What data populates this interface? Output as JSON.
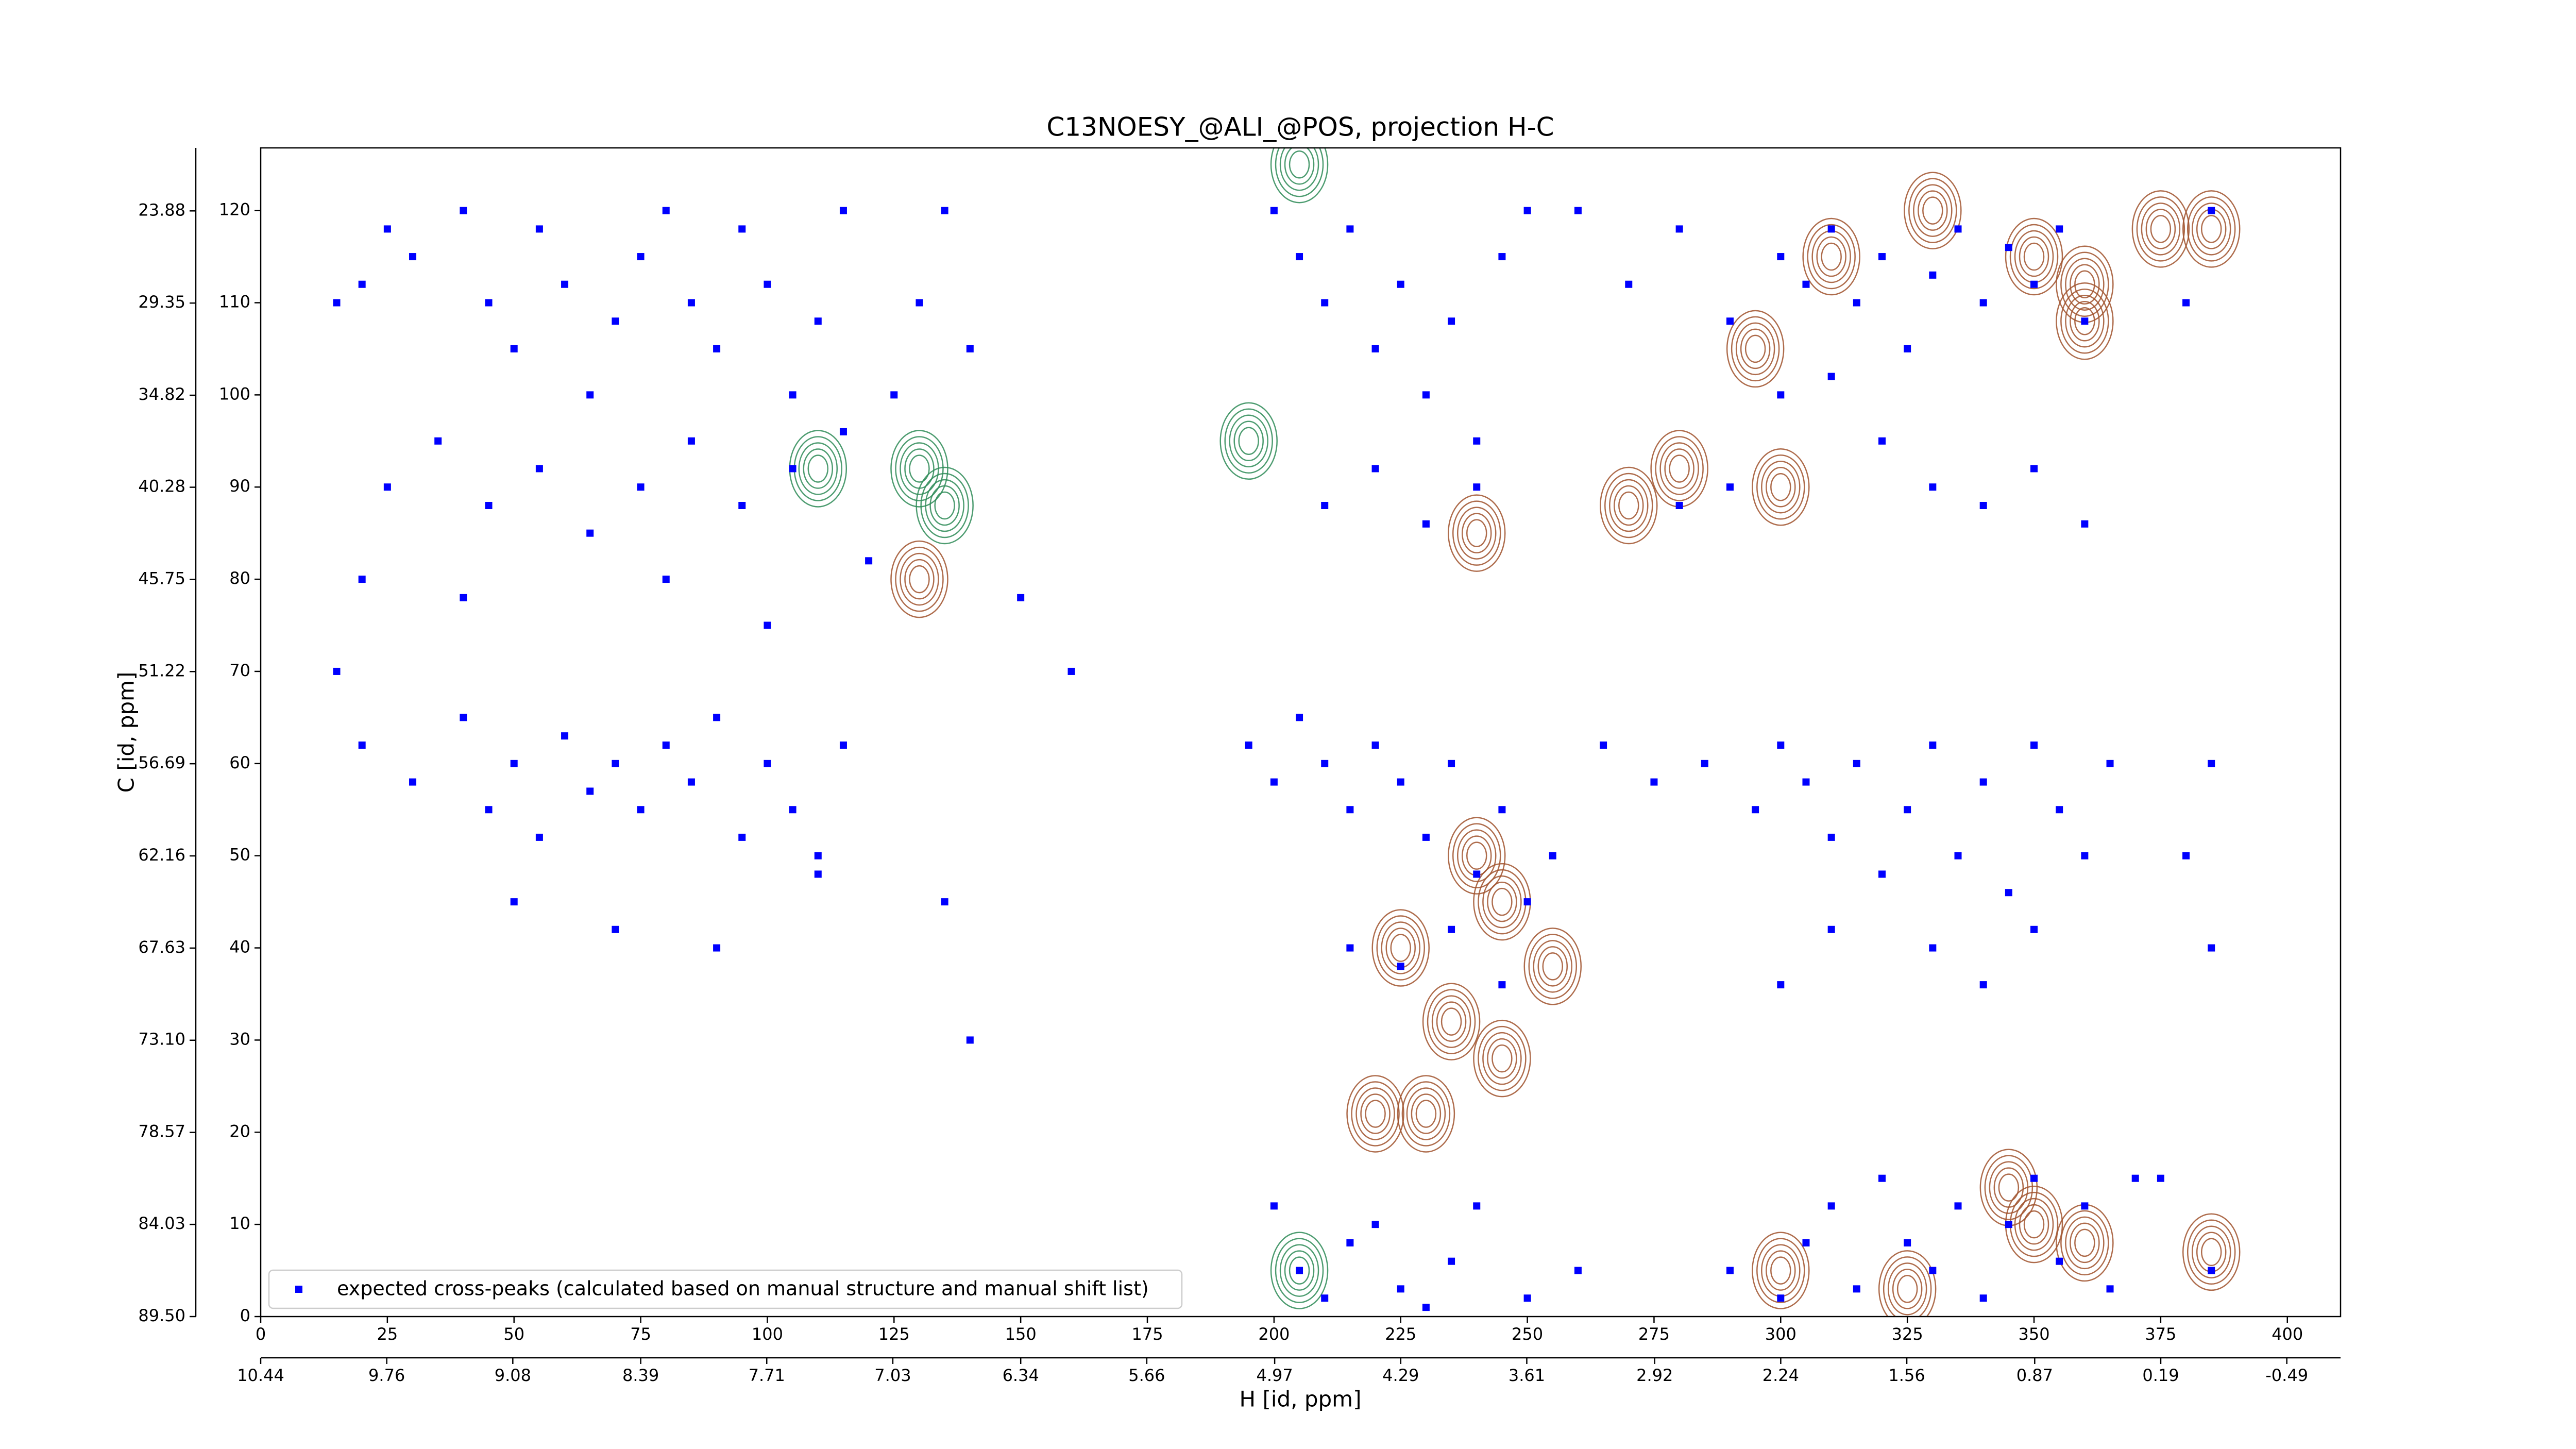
{
  "chart_data": {
    "type": "scatter",
    "title": "C13NOESY_@ALI_@POS, projection H-C",
    "xlabel": "H [id, ppm]",
    "ylabel": "C [id, ppm]",
    "xlim": [
      0,
      410.5
    ],
    "xticks": [
      0,
      25,
      50,
      75,
      100,
      125,
      150,
      175,
      200,
      225,
      250,
      275,
      300,
      325,
      350,
      375,
      400
    ],
    "ylim": [
      0,
      126.8
    ],
    "yticks": [
      0,
      10,
      20,
      30,
      40,
      50,
      60,
      70,
      80,
      90,
      100,
      110,
      120
    ],
    "x2lim": [
      10.44,
      -0.78
    ],
    "x2ticks": [
      10.44,
      9.76,
      9.08,
      8.39,
      7.71,
      7.03,
      6.34,
      5.66,
      4.97,
      4.29,
      3.61,
      2.92,
      2.24,
      1.56,
      0.87,
      0.19,
      -0.49
    ],
    "y2lim": [
      89.5,
      20.14
    ],
    "y2ticks": [
      {
        "value": 89.5,
        "label": "89.50"
      },
      84.03,
      78.57,
      {
        "value": 73.1,
        "label": "73.10"
      },
      67.63,
      62.16,
      56.69,
      51.22,
      45.75,
      40.28,
      34.82,
      29.35,
      23.88
    ],
    "legend": "lower left",
    "series": [
      {
        "name": "expected cross-peaks (calculated based on manual structure and manual shift list)",
        "color": "#0000ff",
        "style": "marker",
        "x": [
          15,
          20,
          25,
          30,
          40,
          45,
          50,
          55,
          60,
          65,
          70,
          75,
          80,
          85,
          90,
          95,
          100,
          105,
          110,
          115,
          25,
          35,
          45,
          55,
          65,
          75,
          85,
          95,
          105,
          115,
          125,
          130,
          135,
          140,
          20,
          30,
          40,
          45,
          50,
          55,
          60,
          65,
          70,
          75,
          80,
          85,
          90,
          95,
          100,
          105,
          110,
          115,
          50,
          70,
          90,
          110,
          15,
          135,
          20,
          40,
          80,
          100,
          120,
          150,
          160,
          140,
          200,
          205,
          210,
          215,
          220,
          225,
          230,
          235,
          240,
          245,
          250,
          210,
          220,
          230,
          240,
          195,
          200,
          205,
          210,
          215,
          220,
          225,
          230,
          235,
          240,
          245,
          250,
          255,
          215,
          225,
          235,
          245,
          200,
          205,
          210,
          215,
          220,
          225,
          230,
          235,
          240,
          250,
          260,
          260,
          270,
          280,
          290,
          300,
          305,
          310,
          315,
          320,
          325,
          330,
          335,
          340,
          345,
          350,
          355,
          360,
          300,
          310,
          320,
          330,
          340,
          350,
          360,
          290,
          280,
          265,
          275,
          285,
          295,
          300,
          305,
          310,
          315,
          320,
          325,
          330,
          335,
          340,
          345,
          350,
          355,
          360,
          365,
          310,
          330,
          350,
          300,
          340,
          290,
          300,
          305,
          310,
          315,
          320,
          325,
          330,
          335,
          340,
          345,
          350,
          355,
          360,
          365,
          370,
          385,
          380,
          385,
          380,
          385,
          375,
          385
        ],
        "values": [
          110,
          112,
          118,
          115,
          120,
          110,
          105,
          118,
          112,
          100,
          108,
          115,
          120,
          110,
          105,
          118,
          112,
          100,
          108,
          120,
          90,
          95,
          88,
          92,
          85,
          90,
          95,
          88,
          92,
          96,
          100,
          110,
          120,
          105,
          62,
          58,
          65,
          55,
          60,
          52,
          63,
          57,
          60,
          55,
          62,
          58,
          65,
          52,
          60,
          55,
          50,
          62,
          45,
          42,
          40,
          48,
          70,
          45,
          80,
          78,
          80,
          75,
          82,
          78,
          70,
          30,
          120,
          115,
          110,
          118,
          105,
          112,
          100,
          108,
          95,
          115,
          120,
          88,
          92,
          86,
          90,
          62,
          58,
          65,
          60,
          55,
          62,
          58,
          52,
          60,
          48,
          55,
          45,
          50,
          40,
          38,
          42,
          36,
          12,
          5,
          2,
          8,
          10,
          3,
          1,
          6,
          12,
          2,
          5,
          120,
          112,
          118,
          108,
          115,
          112,
          118,
          110,
          115,
          105,
          113,
          118,
          110,
          116,
          112,
          118,
          108,
          100,
          102,
          95,
          90,
          88,
          92,
          86,
          90,
          88,
          62,
          58,
          60,
          55,
          62,
          58,
          52,
          60,
          48,
          55,
          62,
          50,
          58,
          46,
          62,
          55,
          50,
          60,
          42,
          40,
          42,
          36,
          36,
          5,
          2,
          8,
          12,
          3,
          15,
          8,
          5,
          12,
          2,
          10,
          15,
          6,
          12,
          3,
          15,
          120,
          110,
          60,
          50,
          40,
          15,
          5
        ]
      },
      {
        "color": "#a0522d",
        "style": "contour",
        "x": [
          240,
          245,
          225,
          235,
          245,
          220,
          230,
          130,
          240,
          270,
          280,
          300,
          295,
          310,
          330,
          350,
          360,
          375,
          385,
          360,
          300,
          325,
          345,
          350,
          360,
          385,
          255
        ],
        "values": [
          50,
          45,
          40,
          32,
          28,
          22,
          22,
          80,
          85,
          88,
          92,
          90,
          105,
          115,
          120,
          115,
          112,
          118,
          118,
          108,
          5,
          3,
          14,
          10,
          8,
          7,
          38
        ]
      },
      {
        "color": "#2e8b57",
        "style": "contour",
        "x": [
          130,
          135,
          205,
          205,
          110,
          195
        ],
        "values": [
          92,
          88,
          125,
          5,
          92,
          95
        ]
      }
    ]
  }
}
